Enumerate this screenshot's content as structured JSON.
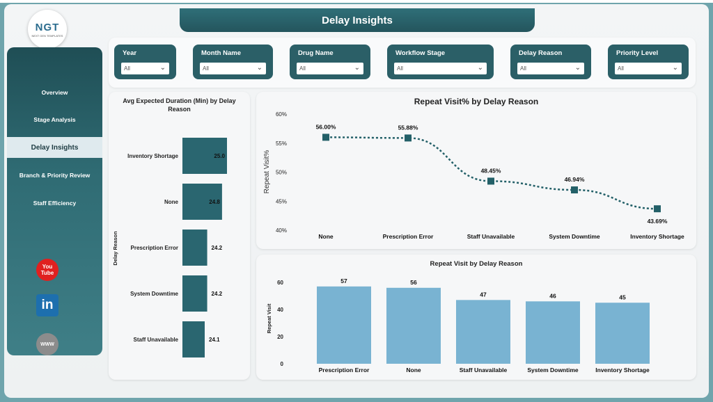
{
  "header": {
    "title": "Delay Insights"
  },
  "logo": {
    "text": "NGT",
    "subtext": "NEXT GEN TEMPLATES"
  },
  "sidebar": {
    "items": [
      {
        "label": "Overview",
        "active": false
      },
      {
        "label": "Stage Analysis",
        "active": false
      },
      {
        "label": "Delay Insights",
        "active": true
      },
      {
        "label": "Branch & Priority Review",
        "active": false
      },
      {
        "label": "Staff Efficiency",
        "active": false
      }
    ],
    "social": {
      "youtube": "You Tube",
      "linkedin": "in",
      "web": "WWW"
    }
  },
  "filters": [
    {
      "label": "Year",
      "value": "All"
    },
    {
      "label": "Month Name",
      "value": "All"
    },
    {
      "label": "Drug Name",
      "value": "All"
    },
    {
      "label": "Workflow Stage",
      "value": "All"
    },
    {
      "label": "Delay Reason",
      "value": "All"
    },
    {
      "label": "Priority Level",
      "value": "All"
    }
  ],
  "colors": {
    "accent": "#2b5f67",
    "bar_dark": "#2a6670",
    "bar_light": "#79b3d2",
    "line": "#236068"
  },
  "chart_data": [
    {
      "type": "bar",
      "orientation": "horizontal",
      "title": "Avg Expected Duration (Min) by Delay Reason",
      "ylabel": "Delay Reason",
      "categories": [
        "Inventory Shortage",
        "None",
        "Prescription Error",
        "System Downtime",
        "Staff Unavailable"
      ],
      "values": [
        25.0,
        24.8,
        24.2,
        24.2,
        24.1
      ],
      "value_labels": [
        "25.0",
        "24.8",
        "24.2",
        "24.2",
        "24.1"
      ]
    },
    {
      "type": "line",
      "title": "Repeat Visit% by Delay Reason",
      "ylabel": "Repeat Visit%",
      "categories": [
        "None",
        "Prescription Error",
        "Staff Unavailable",
        "System Downtime",
        "Inventory Shortage"
      ],
      "values": [
        56.0,
        55.88,
        48.45,
        46.94,
        43.69
      ],
      "value_labels": [
        "56.00%",
        "55.88%",
        "48.45%",
        "46.94%",
        "43.69%"
      ],
      "ylim": [
        40,
        60
      ],
      "yticks": [
        "40%",
        "45%",
        "50%",
        "55%",
        "60%"
      ]
    },
    {
      "type": "bar",
      "title": "Repeat Visit by Delay Reason",
      "ylabel": "Repeat Visit",
      "categories": [
        "Prescription Error",
        "None",
        "Staff Unavailable",
        "System Downtime",
        "Inventory Shortage"
      ],
      "values": [
        57,
        56,
        47,
        46,
        45
      ],
      "ylim": [
        0,
        60
      ],
      "yticks": [
        "0",
        "20",
        "40",
        "60"
      ]
    }
  ]
}
